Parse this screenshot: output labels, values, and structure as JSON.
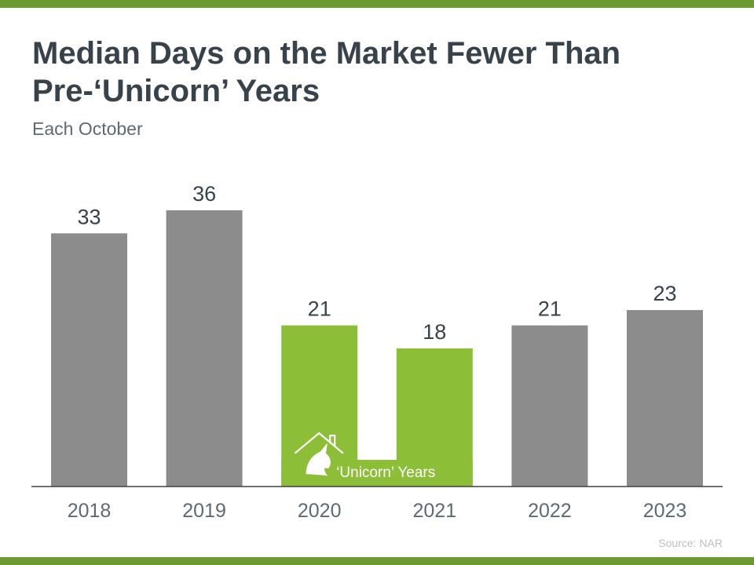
{
  "header": {
    "title": "Median Days on the Market Fewer Than Pre-‘Unicorn’ Years",
    "subtitle": "Each October"
  },
  "footer": {
    "source": "Source: NAR"
  },
  "colors": {
    "accent_band": "#6b9a2e",
    "bar_gray": "#8c8c8c",
    "bar_green": "#8dbe37",
    "text_dark": "#38424a"
  },
  "chart_data": {
    "type": "bar",
    "title": "Median Days on the Market Fewer Than Pre-‘Unicorn’ Years",
    "subtitle": "Each October",
    "categories": [
      "2018",
      "2019",
      "2020",
      "2021",
      "2022",
      "2023"
    ],
    "values": [
      33,
      36,
      21,
      18,
      21,
      23
    ],
    "highlight": [
      false,
      false,
      true,
      true,
      false,
      false
    ],
    "highlight_label": "‘Unicorn’ Years",
    "xlabel": "",
    "ylabel": "",
    "ylim": [
      0,
      36
    ],
    "grid": false,
    "legend": "none",
    "source": "Source: NAR"
  }
}
